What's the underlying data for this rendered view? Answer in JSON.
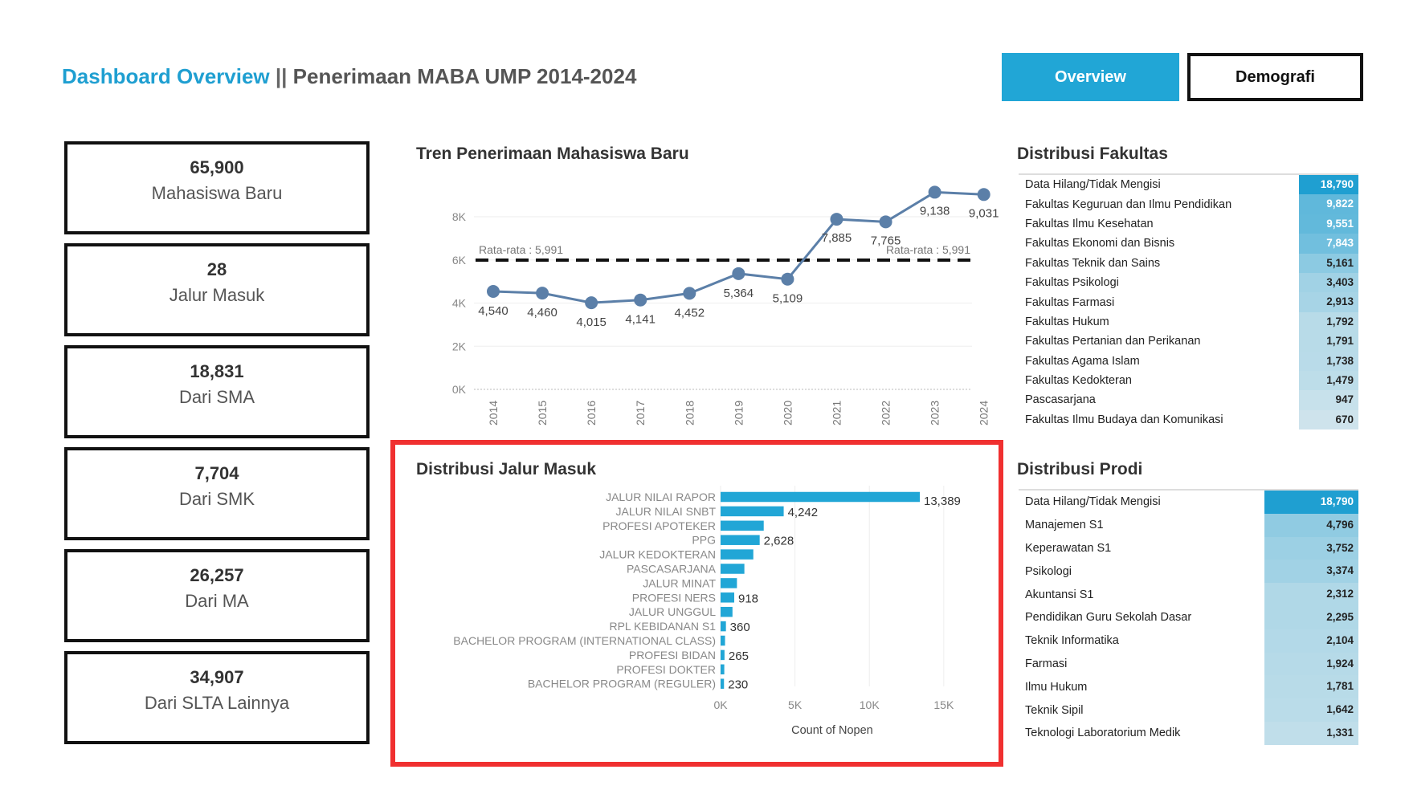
{
  "header": {
    "title_main": "Dashboard Overview",
    "title_sep": " || ",
    "title_sub": "Penerimaan MABA UMP 2014-2024",
    "nav_overview": "Overview",
    "nav_demografi": "Demografi",
    "accent_color": "#21a6d6"
  },
  "kpis": [
    {
      "value": "65,900",
      "label": "Mahasiswa Baru"
    },
    {
      "value": "28",
      "label": "Jalur Masuk"
    },
    {
      "value": "18,831",
      "label": "Dari SMA"
    },
    {
      "value": "7,704",
      "label": "Dari SMK"
    },
    {
      "value": "26,257",
      "label": "Dari MA"
    },
    {
      "value": "34,907",
      "label": "Dari SLTA Lainnya"
    }
  ],
  "trend": {
    "title": "Tren Penerimaan Mahasiswa Baru",
    "avg_label": "Rata-rata : 5,991",
    "avg_value": 5991,
    "line_color": "#5b7fa8"
  },
  "jalur": {
    "title": "Distribusi Jalur Masuk",
    "xlabel": "Count of Nopen",
    "bar_color": "#21a6d6"
  },
  "fakultas": {
    "title": "Distribusi Fakultas",
    "rows": [
      {
        "name": "Data Hilang/Tidak Mengisi",
        "value": 18790,
        "label": "18,790"
      },
      {
        "name": "Fakultas Keguruan dan Ilmu Pendidikan",
        "value": 9822,
        "label": "9,822"
      },
      {
        "name": "Fakultas Ilmu Kesehatan",
        "value": 9551,
        "label": "9,551"
      },
      {
        "name": "Fakultas Ekonomi dan Bisnis",
        "value": 7843,
        "label": "7,843"
      },
      {
        "name": "Fakultas Teknik dan Sains",
        "value": 5161,
        "label": "5,161"
      },
      {
        "name": "Fakultas Psikologi",
        "value": 3403,
        "label": "3,403"
      },
      {
        "name": "Fakultas Farmasi",
        "value": 2913,
        "label": "2,913"
      },
      {
        "name": "Fakultas Hukum",
        "value": 1792,
        "label": "1,792"
      },
      {
        "name": "Fakultas Pertanian dan Perikanan",
        "value": 1791,
        "label": "1,791"
      },
      {
        "name": "Fakultas Agama Islam",
        "value": 1738,
        "label": "1,738"
      },
      {
        "name": "Fakultas Kedokteran",
        "value": 1479,
        "label": "1,479"
      },
      {
        "name": "Pascasarjana",
        "value": 947,
        "label": "947"
      },
      {
        "name": "Fakultas Ilmu Budaya dan Komunikasi",
        "value": 670,
        "label": "670"
      }
    ]
  },
  "prodi": {
    "title": "Distribusi Prodi",
    "rows": [
      {
        "name": "Data Hilang/Tidak Mengisi",
        "value": 18790,
        "label": "18,790"
      },
      {
        "name": "Manajemen S1",
        "value": 4796,
        "label": "4,796"
      },
      {
        "name": "Keperawatan S1",
        "value": 3752,
        "label": "3,752"
      },
      {
        "name": "Psikologi",
        "value": 3374,
        "label": "3,374"
      },
      {
        "name": "Akuntansi S1",
        "value": 2312,
        "label": "2,312"
      },
      {
        "name": "Pendidikan Guru Sekolah Dasar",
        "value": 2295,
        "label": "2,295"
      },
      {
        "name": "Teknik Informatika",
        "value": 2104,
        "label": "2,104"
      },
      {
        "name": "Farmasi",
        "value": 1924,
        "label": "1,924"
      },
      {
        "name": "Ilmu Hukum",
        "value": 1781,
        "label": "1,781"
      },
      {
        "name": "Teknik Sipil",
        "value": 1642,
        "label": "1,642"
      },
      {
        "name": "Teknologi Laboratorium Medik",
        "value": 1331,
        "label": "1,331"
      }
    ]
  },
  "chart_data": [
    {
      "type": "line",
      "title": "Tren Penerimaan Mahasiswa Baru",
      "x": [
        "2014",
        "2015",
        "2016",
        "2017",
        "2018",
        "2019",
        "2020",
        "2021",
        "2022",
        "2023",
        "2024"
      ],
      "values": [
        4540,
        4460,
        4015,
        4141,
        4452,
        5364,
        5109,
        7885,
        7765,
        9138,
        9031
      ],
      "labels": [
        "4,540",
        "4,460",
        "4,015",
        "4,141",
        "4,452",
        "5,364",
        "5,109",
        "7,885",
        "7,765",
        "9,138",
        "9,031"
      ],
      "yticks": [
        "0K",
        "2K",
        "4K",
        "6K",
        "8K"
      ],
      "ylim": [
        0,
        10000
      ],
      "reference_line": {
        "value": 5991,
        "label": "Rata-rata : 5,991"
      },
      "grid": true
    },
    {
      "type": "bar",
      "orientation": "horizontal",
      "title": "Distribusi Jalur Masuk",
      "xlabel": "Count of Nopen",
      "categories": [
        "JALUR NILAI RAPOR",
        "JALUR NILAI SNBT",
        "PROFESI APOTEKER",
        "PPG",
        "JALUR KEDOKTERAN",
        "PASCASARJANA",
        "JALUR MINAT",
        "PROFESI NERS",
        "JALUR UNGGUL",
        "RPL KEBIDANAN S1",
        "BACHELOR PROGRAM (INTERNATIONAL CLASS)",
        "PROFESI BIDAN",
        "PROFESI DOKTER",
        "BACHELOR PROGRAM (REGULER)"
      ],
      "values": [
        13389,
        4242,
        2900,
        2628,
        2200,
        1600,
        1100,
        918,
        800,
        360,
        300,
        265,
        250,
        230
      ],
      "data_labels": [
        "13,389",
        "4,242",
        "",
        "2,628",
        "",
        "",
        "",
        "918",
        "",
        "360",
        "",
        "265",
        "",
        "230"
      ],
      "xticks": [
        "0K",
        "5K",
        "10K",
        "15K"
      ],
      "xlim": [
        0,
        16000
      ],
      "grid": true
    }
  ]
}
